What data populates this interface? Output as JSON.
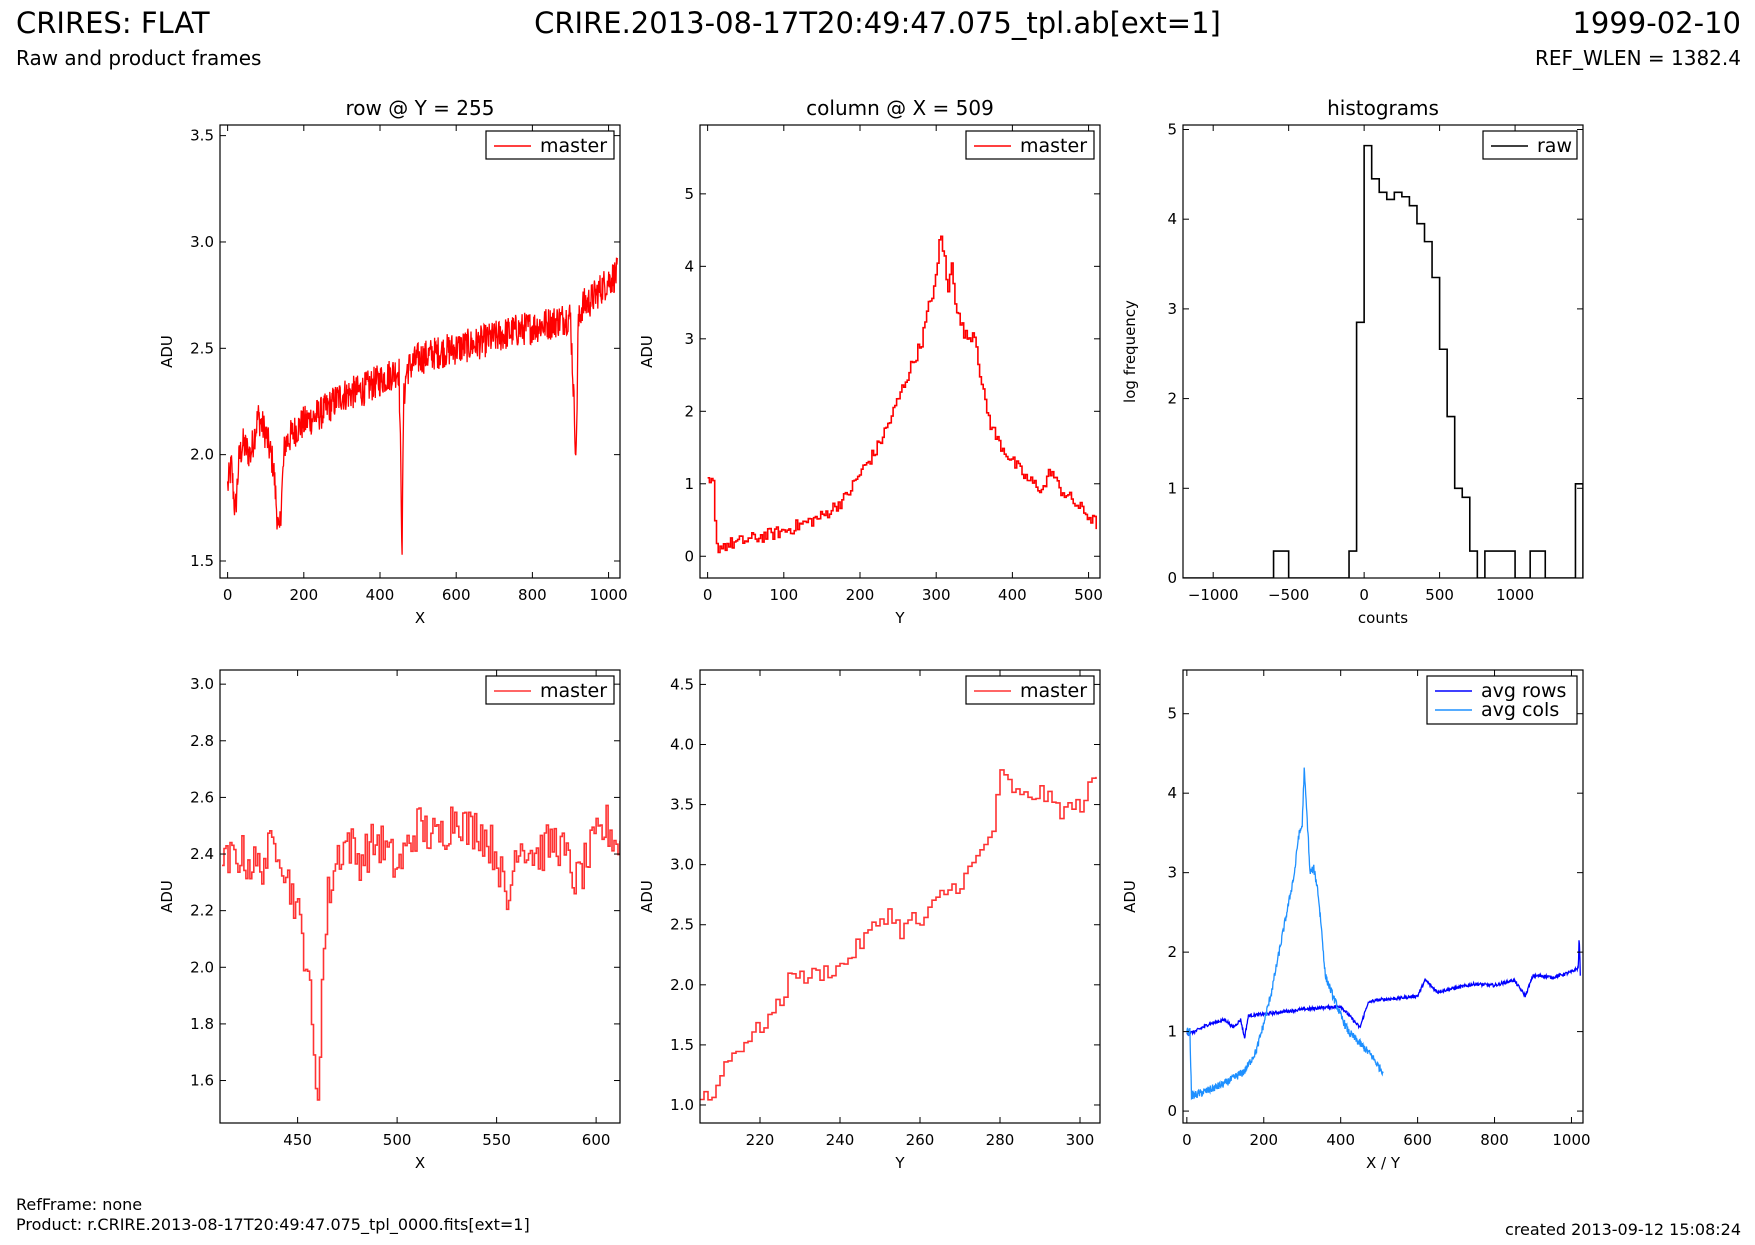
{
  "header": {
    "title": "CRIRES: FLAT",
    "subtitle": "Raw and product frames",
    "center": "CRIRE.2013-08-17T20:49:47.075_tpl.ab[ext=1]",
    "date": "1999-02-10",
    "ref_wlen": "REF_WLEN = 1382.4"
  },
  "footer": {
    "refframe": "RefFrame: none",
    "product": "Product: r.CRIRE.2013-08-17T20:49:47.075_tpl_0000.fits[ext=1]",
    "created": "created 2013-09-12 15:08:24"
  },
  "colors": {
    "master": "#ff0000",
    "raw": "#000000",
    "avg_rows": "#0000ff",
    "avg_cols": "#1e90ff"
  },
  "chart_data": [
    {
      "id": "row-full",
      "type": "line",
      "title": "row @ Y = 255",
      "xlabel": "X",
      "ylabel": "ADU",
      "xlim": [
        -20,
        1030
      ],
      "ylim": [
        1.42,
        3.55
      ],
      "xticks": [
        0,
        200,
        400,
        600,
        800,
        1000
      ],
      "yticks": [
        1.5,
        2.0,
        2.5,
        3.0,
        3.5
      ],
      "yformat": 1,
      "legend": "top-right",
      "series": [
        {
          "name": "master",
          "color": "#ff0000",
          "style": "line",
          "x": [
            0,
            10,
            20,
            30,
            40,
            60,
            80,
            100,
            120,
            135,
            150,
            180,
            200,
            250,
            300,
            350,
            400,
            450,
            458,
            462,
            470,
            500,
            550,
            600,
            650,
            700,
            750,
            800,
            850,
            900,
            915,
            920,
            930,
            950,
            980,
            1000,
            1023
          ],
          "y": [
            1.85,
            1.95,
            1.72,
            1.98,
            2.05,
            2.0,
            2.18,
            2.1,
            1.95,
            1.6,
            2.05,
            2.12,
            2.15,
            2.2,
            2.28,
            2.3,
            2.35,
            2.4,
            1.56,
            2.25,
            2.4,
            2.45,
            2.48,
            2.5,
            2.52,
            2.55,
            2.58,
            2.6,
            2.62,
            2.65,
            1.98,
            2.6,
            2.7,
            2.72,
            2.78,
            2.82,
            2.85
          ],
          "noise": 0.08
        }
      ]
    },
    {
      "id": "col-full",
      "type": "line",
      "title": "column @ X = 509",
      "xlabel": "Y",
      "ylabel": "ADU",
      "xlim": [
        -10,
        515
      ],
      "ylim": [
        -0.3,
        5.95
      ],
      "xticks": [
        0,
        100,
        200,
        300,
        400,
        500
      ],
      "yticks": [
        0,
        1,
        2,
        3,
        4,
        5
      ],
      "yformat": 0,
      "legend": "top-right",
      "series": [
        {
          "name": "master",
          "color": "#ff0000",
          "style": "step",
          "x": [
            0,
            8,
            10,
            20,
            50,
            100,
            150,
            180,
            200,
            220,
            240,
            260,
            280,
            290,
            300,
            305,
            310,
            315,
            320,
            325,
            330,
            340,
            350,
            360,
            370,
            380,
            400,
            420,
            440,
            450,
            460,
            480,
            500,
            510
          ],
          "y": [
            1.0,
            1.0,
            0.12,
            0.15,
            0.22,
            0.35,
            0.55,
            0.8,
            1.15,
            1.45,
            1.9,
            2.45,
            2.95,
            3.45,
            3.85,
            4.5,
            4.15,
            3.6,
            4.1,
            3.5,
            3.25,
            3.0,
            3.1,
            2.3,
            1.85,
            1.6,
            1.3,
            1.05,
            0.92,
            1.2,
            0.95,
            0.75,
            0.55,
            0.45
          ],
          "noise": 0.09
        }
      ]
    },
    {
      "id": "histograms",
      "type": "bar",
      "title": "histograms",
      "xlabel": "counts",
      "ylabel": "log frequency",
      "xlim": [
        -1200,
        1450
      ],
      "ylim": [
        0,
        5.05
      ],
      "xticks": [
        -1000,
        -500,
        0,
        500,
        1000
      ],
      "yticks": [
        0,
        1,
        2,
        3,
        4,
        5
      ],
      "xtick_labels": [
        "−1000",
        "−500",
        "0",
        "500",
        "1000"
      ],
      "yformat": 0,
      "legend": "top-right",
      "series": [
        {
          "name": "raw",
          "color": "#000000",
          "style": "hist",
          "edges": [
            -1200,
            -1150,
            -1100,
            -1050,
            -1000,
            -950,
            -900,
            -850,
            -800,
            -750,
            -700,
            -650,
            -600,
            -550,
            -500,
            -450,
            -400,
            -350,
            -300,
            -250,
            -200,
            -150,
            -100,
            -50,
            0,
            50,
            100,
            150,
            200,
            250,
            300,
            350,
            400,
            450,
            500,
            550,
            600,
            650,
            700,
            750,
            800,
            850,
            900,
            950,
            1000,
            1050,
            1100,
            1150,
            1200,
            1250,
            1300,
            1350,
            1400,
            1450
          ],
          "counts": [
            0,
            0,
            0,
            0,
            0,
            0,
            0,
            0,
            0,
            0,
            0,
            0,
            0.3,
            0.3,
            0,
            0,
            0,
            0,
            0,
            0,
            0,
            0,
            0.3,
            2.85,
            4.82,
            4.45,
            4.3,
            4.22,
            4.3,
            4.25,
            4.15,
            3.95,
            3.75,
            3.35,
            2.55,
            1.8,
            1.0,
            0.9,
            0.3,
            0,
            0.3,
            0.3,
            0.3,
            0.3,
            0,
            0,
            0.3,
            0.3,
            0,
            0,
            0,
            0,
            1.05
          ]
        }
      ]
    },
    {
      "id": "row-zoom",
      "type": "line",
      "title": "",
      "xlabel": "X",
      "ylabel": "ADU",
      "xlim": [
        411,
        612
      ],
      "ylim": [
        1.45,
        3.05
      ],
      "xticks": [
        450,
        500,
        550,
        600
      ],
      "yticks": [
        1.6,
        1.8,
        2.0,
        2.2,
        2.4,
        2.6,
        2.8,
        3.0
      ],
      "yformat": 1,
      "legend": "top-right",
      "series": [
        {
          "name": "master",
          "color": "#ff3333",
          "style": "step",
          "x": [
            412,
            420,
            430,
            440,
            445,
            448,
            452,
            455,
            458,
            460,
            462,
            465,
            470,
            475,
            480,
            490,
            500,
            510,
            520,
            530,
            535,
            540,
            550,
            555,
            560,
            570,
            580,
            590,
            600,
            605,
            612
          ],
          "y": [
            2.35,
            2.4,
            2.35,
            2.45,
            2.3,
            2.25,
            2.1,
            2.0,
            1.65,
            1.56,
            1.95,
            2.25,
            2.4,
            2.45,
            2.38,
            2.45,
            2.35,
            2.5,
            2.45,
            2.55,
            2.48,
            2.5,
            2.4,
            2.2,
            2.45,
            2.4,
            2.45,
            2.3,
            2.45,
            2.5,
            2.42
          ],
          "noise": 0.08
        }
      ]
    },
    {
      "id": "col-zoom",
      "type": "line",
      "title": "",
      "xlabel": "Y",
      "ylabel": "ADU",
      "xlim": [
        205,
        305
      ],
      "ylim": [
        0.85,
        4.62
      ],
      "xticks": [
        220,
        240,
        260,
        280,
        300
      ],
      "yticks": [
        1.0,
        1.5,
        2.0,
        2.5,
        3.0,
        3.5,
        4.0,
        4.5
      ],
      "yformat": 1,
      "legend": "top-right",
      "series": [
        {
          "name": "master",
          "color": "#ff3333",
          "style": "step",
          "x": [
            205,
            208,
            210,
            215,
            220,
            225,
            228,
            230,
            235,
            240,
            245,
            250,
            252,
            255,
            258,
            260,
            265,
            270,
            275,
            278,
            280,
            285,
            290,
            295,
            300,
            304
          ],
          "y": [
            1.1,
            1.05,
            1.3,
            1.5,
            1.65,
            1.85,
            2.15,
            2.05,
            2.1,
            2.15,
            2.35,
            2.55,
            2.6,
            2.45,
            2.55,
            2.5,
            2.75,
            2.85,
            3.1,
            3.3,
            3.75,
            3.55,
            3.6,
            3.45,
            3.5,
            3.75
          ],
          "noise": 0.07
        }
      ]
    },
    {
      "id": "avg",
      "type": "line",
      "title": "",
      "xlabel": "X / Y",
      "ylabel": "ADU",
      "xlim": [
        -10,
        1030
      ],
      "ylim": [
        -0.15,
        5.55
      ],
      "xticks": [
        0,
        200,
        400,
        600,
        800,
        1000
      ],
      "yticks": [
        0,
        1,
        2,
        3,
        4,
        5
      ],
      "yformat": 0,
      "legend": "top-right",
      "series": [
        {
          "name": "avg rows",
          "color": "#0000ff",
          "style": "line",
          "x": [
            0,
            20,
            40,
            60,
            100,
            120,
            140,
            150,
            160,
            200,
            300,
            400,
            450,
            470,
            480,
            500,
            550,
            600,
            620,
            650,
            700,
            750,
            800,
            850,
            880,
            900,
            930,
            950,
            1000,
            1018,
            1020,
            1023
          ],
          "y": [
            0.97,
            1.0,
            1.05,
            1.1,
            1.15,
            1.05,
            1.15,
            0.92,
            1.2,
            1.22,
            1.28,
            1.32,
            1.05,
            1.35,
            1.38,
            1.4,
            1.42,
            1.45,
            1.65,
            1.5,
            1.55,
            1.6,
            1.58,
            1.65,
            1.45,
            1.7,
            1.7,
            1.68,
            1.75,
            1.8,
            2.25,
            1.7
          ],
          "noise": 0.02
        },
        {
          "name": "avg cols",
          "color": "#1e90ff",
          "style": "line",
          "x": [
            0,
            8,
            12,
            20,
            50,
            100,
            150,
            180,
            200,
            220,
            240,
            260,
            280,
            290,
            300,
            305,
            310,
            315,
            320,
            330,
            340,
            350,
            360,
            380,
            400,
            420,
            440,
            460,
            480,
            500,
            510
          ],
          "y": [
            1.0,
            1.0,
            0.2,
            0.2,
            0.25,
            0.35,
            0.5,
            0.75,
            1.1,
            1.5,
            2.0,
            2.5,
            3.0,
            3.45,
            3.6,
            4.3,
            3.9,
            3.5,
            3.0,
            3.05,
            2.8,
            2.3,
            1.7,
            1.45,
            1.2,
            1.0,
            0.9,
            0.8,
            0.7,
            0.55,
            0.5
          ],
          "noise": 0.05
        }
      ]
    }
  ]
}
